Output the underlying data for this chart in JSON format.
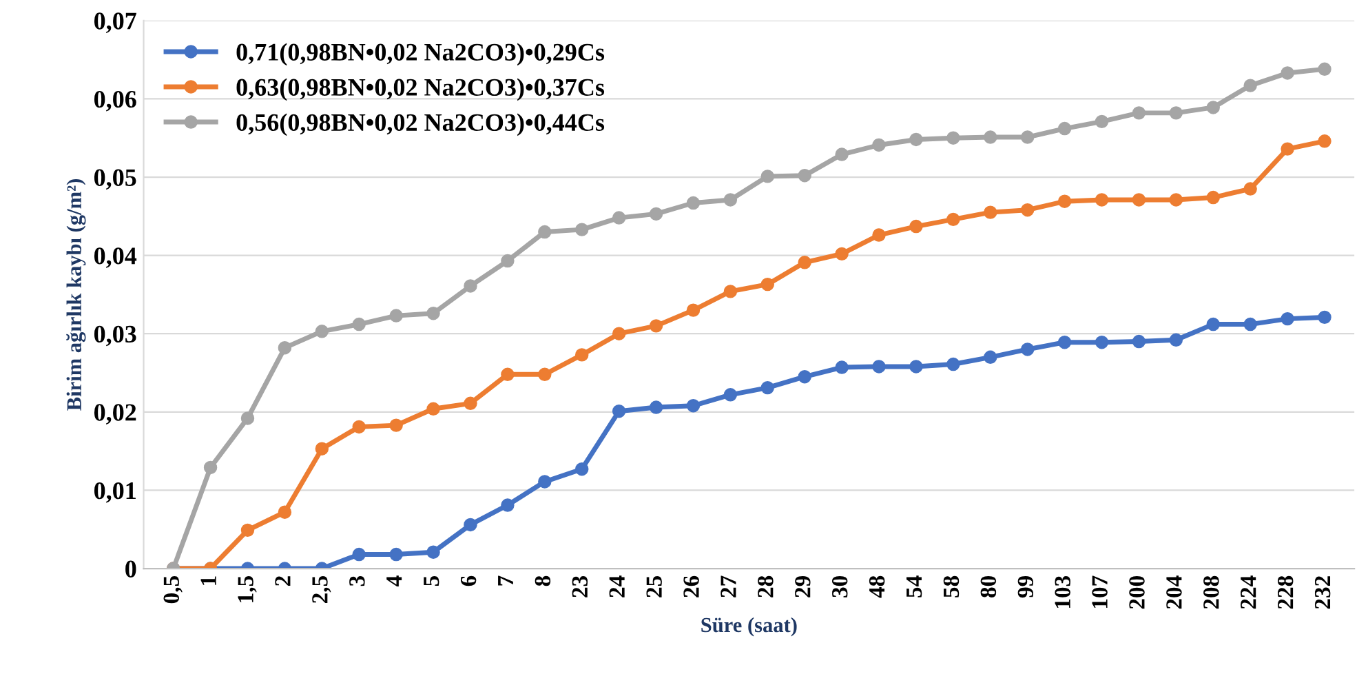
{
  "chart_data": {
    "type": "line",
    "xlabel": "Süre (saat)",
    "ylabel": "Birim ağırlık kaybı (g/m²)",
    "categories": [
      "0,5",
      "1",
      "1,5",
      "2",
      "2,5",
      "3",
      "4",
      "5",
      "6",
      "7",
      "8",
      "23",
      "24",
      "25",
      "26",
      "27",
      "28",
      "29",
      "30",
      "48",
      "54",
      "58",
      "80",
      "99",
      "103",
      "107",
      "200",
      "204",
      "208",
      "224",
      "228",
      "232"
    ],
    "series": [
      {
        "name": "0,71(0,98BN•0,02 Na2CO3)•0,29Cs",
        "color": "#4472c4",
        "values": [
          0,
          0,
          0,
          0,
          0,
          0.0018,
          0.0018,
          0.0021,
          0.0056,
          0.0081,
          0.0111,
          0.0127,
          0.0201,
          0.0206,
          0.0208,
          0.0222,
          0.0231,
          0.0245,
          0.0257,
          0.0258,
          0.0258,
          0.0261,
          0.027,
          0.028,
          0.0289,
          0.0289,
          0.029,
          0.0292,
          0.0312,
          0.0312,
          0.0319,
          0.0321
        ]
      },
      {
        "name": "0,63(0,98BN•0,02 Na2CO3)•0,37Cs",
        "color": "#ed7d31",
        "values": [
          0,
          0,
          0.0049,
          0.0072,
          0.0153,
          0.0181,
          0.0183,
          0.0204,
          0.0211,
          0.0248,
          0.0248,
          0.0273,
          0.03,
          0.031,
          0.033,
          0.0354,
          0.0363,
          0.0391,
          0.0402,
          0.0426,
          0.0437,
          0.0446,
          0.0455,
          0.0458,
          0.0469,
          0.0471,
          0.0471,
          0.0471,
          0.0474,
          0.0485,
          0.0536,
          0.0546
        ]
      },
      {
        "name": "0,56(0,98BN•0,02 Na2CO3)•0,44Cs",
        "color": "#a5a5a5",
        "values": [
          0,
          0.0129,
          0.0192,
          0.0282,
          0.0303,
          0.0312,
          0.0323,
          0.0326,
          0.0361,
          0.0393,
          0.043,
          0.0433,
          0.0448,
          0.0453,
          0.0467,
          0.0471,
          0.0501,
          0.0502,
          0.0529,
          0.0541,
          0.0548,
          0.055,
          0.0551,
          0.0551,
          0.0562,
          0.0571,
          0.0582,
          0.0582,
          0.0589,
          0.0617,
          0.0633,
          0.0638
        ]
      }
    ],
    "ylim": [
      0,
      0.07
    ],
    "yticks": [
      {
        "value": 0,
        "label": "0"
      },
      {
        "value": 0.01,
        "label": "0,01"
      },
      {
        "value": 0.02,
        "label": "0,02"
      },
      {
        "value": 0.03,
        "label": "0,03"
      },
      {
        "value": 0.04,
        "label": "0,04"
      },
      {
        "value": 0.05,
        "label": "0,05"
      },
      {
        "value": 0.06,
        "label": "0,06"
      },
      {
        "value": 0.07,
        "label": "0,07"
      }
    ],
    "grid": "y",
    "legend": "top left",
    "marker": "circle",
    "line_style": "solid"
  }
}
